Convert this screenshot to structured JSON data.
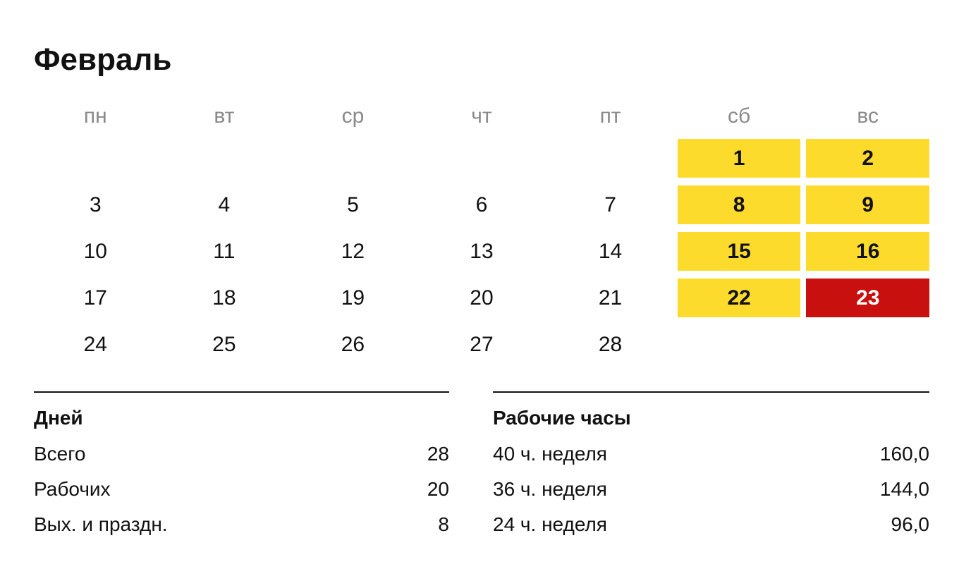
{
  "title": "Февраль",
  "weekdays": [
    "пн",
    "вт",
    "ср",
    "чт",
    "пт",
    "сб",
    "вс"
  ],
  "colors": {
    "accent_weekend": "#FCDB2D",
    "accent_holiday": "#C8100E",
    "holiday_text": "#FFFFFF",
    "header_gray": "#8A8A8A",
    "text": "#111111"
  },
  "weeks": [
    [
      {
        "day": "",
        "type": "empty"
      },
      {
        "day": "",
        "type": "empty"
      },
      {
        "day": "",
        "type": "empty"
      },
      {
        "day": "",
        "type": "empty"
      },
      {
        "day": "",
        "type": "empty"
      },
      {
        "day": "1",
        "type": "weekend"
      },
      {
        "day": "2",
        "type": "weekend"
      }
    ],
    [
      {
        "day": "3",
        "type": "work"
      },
      {
        "day": "4",
        "type": "work"
      },
      {
        "day": "5",
        "type": "work"
      },
      {
        "day": "6",
        "type": "work"
      },
      {
        "day": "7",
        "type": "work"
      },
      {
        "day": "8",
        "type": "weekend"
      },
      {
        "day": "9",
        "type": "weekend"
      }
    ],
    [
      {
        "day": "10",
        "type": "work"
      },
      {
        "day": "11",
        "type": "work"
      },
      {
        "day": "12",
        "type": "work"
      },
      {
        "day": "13",
        "type": "work"
      },
      {
        "day": "14",
        "type": "work"
      },
      {
        "day": "15",
        "type": "weekend"
      },
      {
        "day": "16",
        "type": "weekend"
      }
    ],
    [
      {
        "day": "17",
        "type": "work"
      },
      {
        "day": "18",
        "type": "work"
      },
      {
        "day": "19",
        "type": "work"
      },
      {
        "day": "20",
        "type": "work"
      },
      {
        "day": "21",
        "type": "work"
      },
      {
        "day": "22",
        "type": "weekend"
      },
      {
        "day": "23",
        "type": "holiday"
      }
    ],
    [
      {
        "day": "24",
        "type": "work"
      },
      {
        "day": "25",
        "type": "work"
      },
      {
        "day": "26",
        "type": "work"
      },
      {
        "day": "27",
        "type": "work"
      },
      {
        "day": "28",
        "type": "work"
      },
      {
        "day": "",
        "type": "empty"
      },
      {
        "day": "",
        "type": "empty"
      }
    ]
  ],
  "summary_days": {
    "heading": "Дней",
    "rows": [
      {
        "label": "Всего",
        "value": "28"
      },
      {
        "label": "Рабочих",
        "value": "20"
      },
      {
        "label": "Вых. и праздн.",
        "value": "8"
      }
    ]
  },
  "summary_hours": {
    "heading": "Рабочие часы",
    "rows": [
      {
        "label": "40 ч. неделя",
        "value": "160,0"
      },
      {
        "label": "36 ч. неделя",
        "value": "144,0"
      },
      {
        "label": "24 ч. неделя",
        "value": "96,0"
      }
    ]
  }
}
